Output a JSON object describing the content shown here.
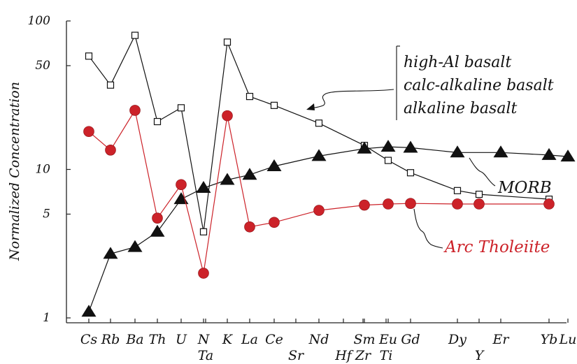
{
  "chart_data": {
    "type": "line",
    "yscale": "log",
    "ylabel": "Normalized Concentration",
    "ylim": [
      1,
      100
    ],
    "y_ticks": [
      "1",
      "5",
      "10",
      "50",
      "100"
    ],
    "x": [
      "Cs",
      "Rb",
      "Ba",
      "Th",
      "U",
      "N",
      "Ta",
      "K",
      "La",
      "Ce",
      "Sr",
      "Nd",
      "Hf",
      "Zr",
      "Sm",
      "Eu",
      "Ti",
      "Gd",
      "Dy",
      "Y",
      "Er",
      "Yb",
      "Lu"
    ],
    "series": [
      {
        "name": "high-Al basalt / calc-alkaline basalt / alkaline basalt",
        "marker": "open-square",
        "color": "#111111",
        "points": [
          {
            "x": "Cs",
            "y": 58
          },
          {
            "x": "Rb",
            "y": 37
          },
          {
            "x": "Ba",
            "y": 80
          },
          {
            "x": "Th",
            "y": 21
          },
          {
            "x": "U",
            "y": 26
          },
          {
            "x": "N",
            "y": 3.8
          },
          {
            "x": "K",
            "y": 72
          },
          {
            "x": "La",
            "y": 31
          },
          {
            "x": "Ce",
            "y": 27
          },
          {
            "x": "Nd",
            "y": 20.5
          },
          {
            "x": "Sm",
            "y": 14.5
          },
          {
            "x": "Eu",
            "y": 11.5
          },
          {
            "x": "Gd",
            "y": 9.5
          },
          {
            "x": "Dy",
            "y": 7.2
          },
          {
            "x": "Y",
            "y": 6.8
          },
          {
            "x": "Yb",
            "y": 6.3
          }
        ]
      },
      {
        "name": "MORB",
        "marker": "filled-triangle",
        "color": "#111111",
        "points": [
          {
            "x": "Cs",
            "y": 1.1
          },
          {
            "x": "Rb",
            "y": 2.7
          },
          {
            "x": "Ba",
            "y": 3.0
          },
          {
            "x": "Th",
            "y": 3.8
          },
          {
            "x": "U",
            "y": 6.3
          },
          {
            "x": "N",
            "y": 7.5
          },
          {
            "x": "K",
            "y": 8.5
          },
          {
            "x": "La",
            "y": 9.2
          },
          {
            "x": "Ce",
            "y": 10.5
          },
          {
            "x": "Nd",
            "y": 12.3
          },
          {
            "x": "Sm",
            "y": 13.8
          },
          {
            "x": "Eu",
            "y": 14.2
          },
          {
            "x": "Gd",
            "y": 14.0
          },
          {
            "x": "Dy",
            "y": 13.0
          },
          {
            "x": "Er",
            "y": 13.0
          },
          {
            "x": "Yb",
            "y": 12.5
          },
          {
            "x": "Lu",
            "y": 12.2
          }
        ]
      },
      {
        "name": "Arc Tholeiite",
        "marker": "filled-circle",
        "color": "#cc2229",
        "points": [
          {
            "x": "Cs",
            "y": 18.0
          },
          {
            "x": "Rb",
            "y": 13.5
          },
          {
            "x": "Ba",
            "y": 25.0
          },
          {
            "x": "Th",
            "y": 4.7
          },
          {
            "x": "U",
            "y": 7.9
          },
          {
            "x": "N",
            "y": 2.0
          },
          {
            "x": "K",
            "y": 23.0
          },
          {
            "x": "La",
            "y": 4.1
          },
          {
            "x": "Ce",
            "y": 4.4
          },
          {
            "x": "Nd",
            "y": 5.3
          },
          {
            "x": "Sm",
            "y": 5.75
          },
          {
            "x": "Eu",
            "y": 5.85
          },
          {
            "x": "Gd",
            "y": 5.9
          },
          {
            "x": "Dy",
            "y": 5.85
          },
          {
            "x": "Y",
            "y": 5.85
          },
          {
            "x": "Yb",
            "y": 5.85
          }
        ]
      }
    ],
    "annotations": {
      "basalt_lines": [
        "high-Al basalt",
        "calc-alkaline basalt",
        "alkaline basalt"
      ],
      "morb": "MORB",
      "arc": "Arc Tholeiite"
    }
  }
}
